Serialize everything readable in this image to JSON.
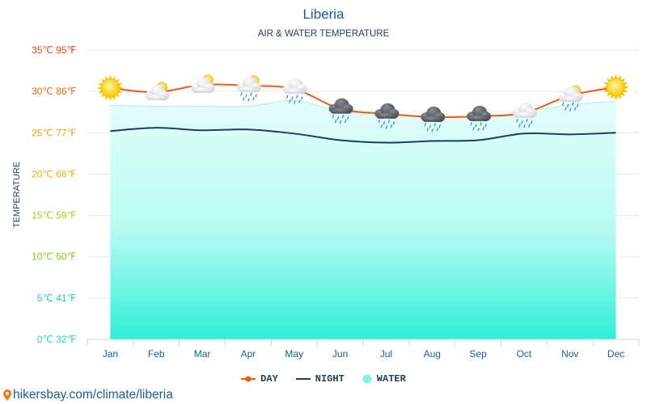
{
  "chart_data": {
    "type": "line",
    "title": "Liberia",
    "subtitle": "AIR & WATER TEMPERATURE",
    "ylabel": "TEMPERATURE",
    "categories": [
      "Jan",
      "Feb",
      "Mar",
      "Apr",
      "May",
      "Jun",
      "Jul",
      "Aug",
      "Sep",
      "Oct",
      "Nov",
      "Dec"
    ],
    "ylim": [
      0,
      35
    ],
    "yticks": [
      {
        "label": "0℃ 32℉",
        "color": "#21d6c4"
      },
      {
        "label": "5℃ 41℉",
        "color": "#1ec8d4"
      },
      {
        "label": "10℃ 50℉",
        "color": "#7ad11e"
      },
      {
        "label": "15℃ 59℉",
        "color": "#a8cf1a"
      },
      {
        "label": "20℃ 68℉",
        "color": "#e3b70e"
      },
      {
        "label": "25℃ 77℉",
        "color": "#f2a007"
      },
      {
        "label": "30℃ 86℉",
        "color": "#ee6a12"
      },
      {
        "label": "35℃ 95℉",
        "color": "#e84a0e"
      }
    ],
    "grid": true,
    "legend_position": "bottom-center",
    "series": [
      {
        "name": "DAY",
        "color": "#f05a11",
        "values": [
          30.4,
          29.9,
          30.8,
          30.7,
          30.3,
          27.9,
          27.3,
          26.9,
          27.0,
          27.4,
          29.5,
          30.5
        ]
      },
      {
        "name": "NIGHT",
        "color": "#1d3f5e",
        "values": [
          25.2,
          25.6,
          25.3,
          25.4,
          24.9,
          24.1,
          23.8,
          24.0,
          24.1,
          24.9,
          24.8,
          25.0
        ]
      },
      {
        "name": "WATER",
        "color": "#7ff3ea",
        "values": [
          28.3,
          28.2,
          28.2,
          28.2,
          28.9,
          27.6,
          27.2,
          27.0,
          26.9,
          27.5,
          28.4,
          28.8
        ]
      }
    ],
    "weather_icons": [
      "sun-icon",
      "partly-cloudy-icon",
      "partly-cloudy-icon",
      "partly-cloudy-rain-icon",
      "cloud-rain-icon",
      "storm-cloud-rain-icon",
      "storm-cloud-rain-icon",
      "storm-cloud-rain-icon",
      "storm-cloud-rain-icon",
      "cloud-rain-icon",
      "partly-cloudy-rain-icon",
      "sun-icon"
    ]
  },
  "footer": {
    "text": "hikersbay.com/climate/liberia"
  }
}
